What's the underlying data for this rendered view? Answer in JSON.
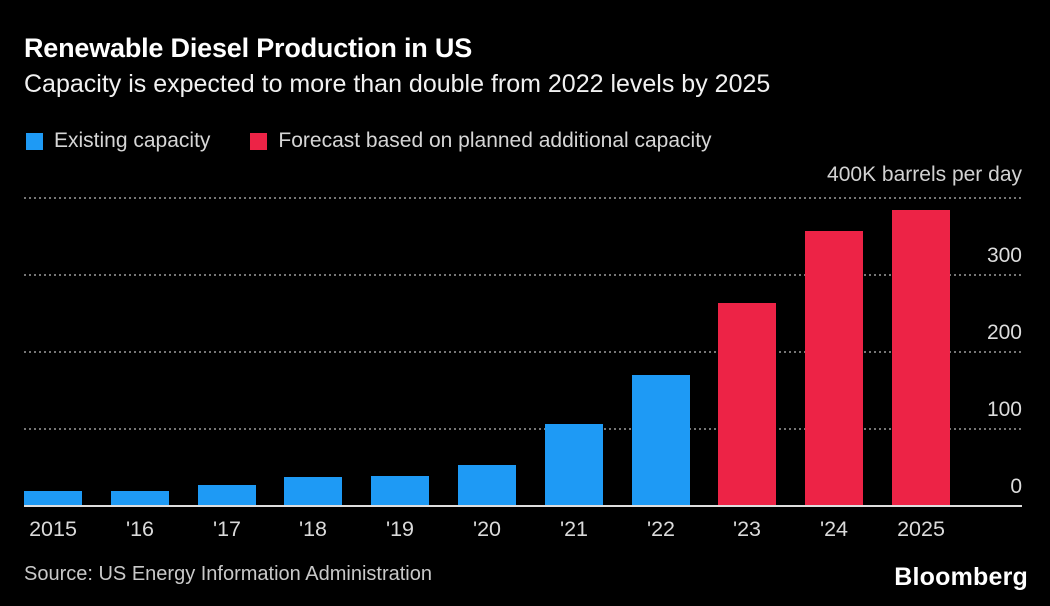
{
  "page": {
    "background": "#000000"
  },
  "header": {
    "title": "Renewable Diesel Production in US",
    "subtitle": "Capacity is expected to more than double from 2022 levels by 2025"
  },
  "legend": {
    "items": [
      {
        "label": "Existing capacity",
        "color": "#1e9af5"
      },
      {
        "label": "Forecast based on planned additional capacity",
        "color": "#ed2346"
      }
    ]
  },
  "chart_data": {
    "type": "bar",
    "title": "Renewable Diesel Production in US",
    "subtitle": "Capacity is expected to more than double from 2022 levels by 2025",
    "axis_title": "400K barrels per day",
    "unit": "K barrels per day",
    "categories": [
      "2015",
      "'16",
      "'17",
      "'18",
      "'19",
      "'20",
      "'21",
      "'22",
      "'23",
      "'24",
      "2025"
    ],
    "series": [
      {
        "name": "Existing capacity",
        "color": "#1e9af5",
        "values": [
          20,
          20,
          27,
          38,
          39,
          53,
          106,
          170,
          null,
          null,
          null
        ]
      },
      {
        "name": "Forecast based on planned additional capacity",
        "color": "#ed2346",
        "values": [
          null,
          null,
          null,
          null,
          null,
          null,
          null,
          null,
          264,
          357,
          384
        ]
      }
    ],
    "ylim": [
      0,
      400
    ],
    "yticks": [
      0,
      100,
      200,
      300,
      400
    ],
    "ytick_labels_shown": [
      "0",
      "100",
      "200",
      "300"
    ],
    "grid": "horizontal-dotted",
    "legend_position": "top-left",
    "gridline_color": "#767676",
    "baseline_color": "#dedede"
  },
  "footer": {
    "source": "Source: US Energy Information Administration",
    "brand": "Bloomberg"
  }
}
